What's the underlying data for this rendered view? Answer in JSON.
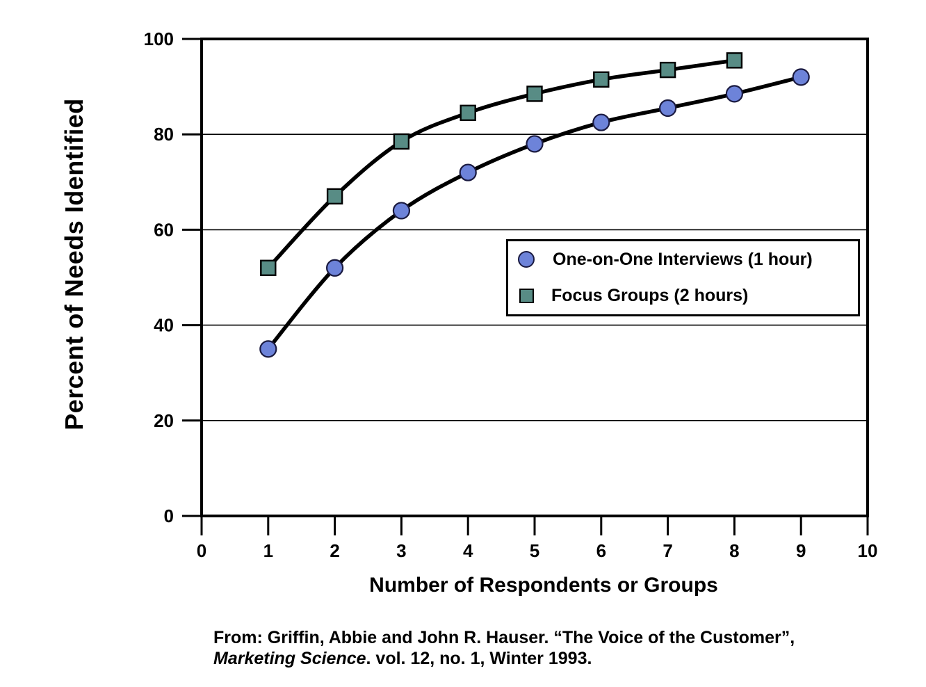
{
  "chart_data": {
    "type": "line",
    "title": "",
    "xlabel": "Number of Respondents or Groups",
    "ylabel": "Percent of Needs Identified",
    "xlim": [
      0,
      10
    ],
    "ylim": [
      0,
      100
    ],
    "x_ticks": [
      0,
      1,
      2,
      3,
      4,
      5,
      6,
      7,
      8,
      9,
      10
    ],
    "y_ticks": [
      0,
      20,
      40,
      60,
      80,
      100
    ],
    "gridlines_y": [
      20,
      40,
      60,
      80
    ],
    "grid": true,
    "legend_position": "inside-middle-right",
    "axis_color": "#000000",
    "series": [
      {
        "name": "One-on-One Interviews (1 hour)",
        "marker": "circle",
        "marker_fill": "#6d83d9",
        "marker_stroke": "#1a1a40",
        "line_color": "#000000",
        "x": [
          1,
          2,
          3,
          4,
          5,
          6,
          7,
          8,
          9
        ],
        "values": [
          35,
          52,
          64,
          72,
          78,
          82.5,
          85.5,
          88.5,
          92
        ]
      },
      {
        "name": "Focus Groups (2 hours)",
        "marker": "square",
        "marker_fill": "#588c85",
        "marker_stroke": "#000000",
        "line_color": "#000000",
        "x": [
          1,
          2,
          3,
          4,
          5,
          6,
          7,
          8
        ],
        "values": [
          52,
          67,
          78.5,
          84.5,
          88.5,
          91.5,
          93.5,
          95.5
        ]
      }
    ]
  },
  "caption": {
    "line1": "From: Griffin, Abbie and John R. Hauser. “The Voice of the Customer”,",
    "line2_italic": "Marketing Science",
    "line2_rest": ". vol. 12, no. 1, Winter 1993."
  }
}
